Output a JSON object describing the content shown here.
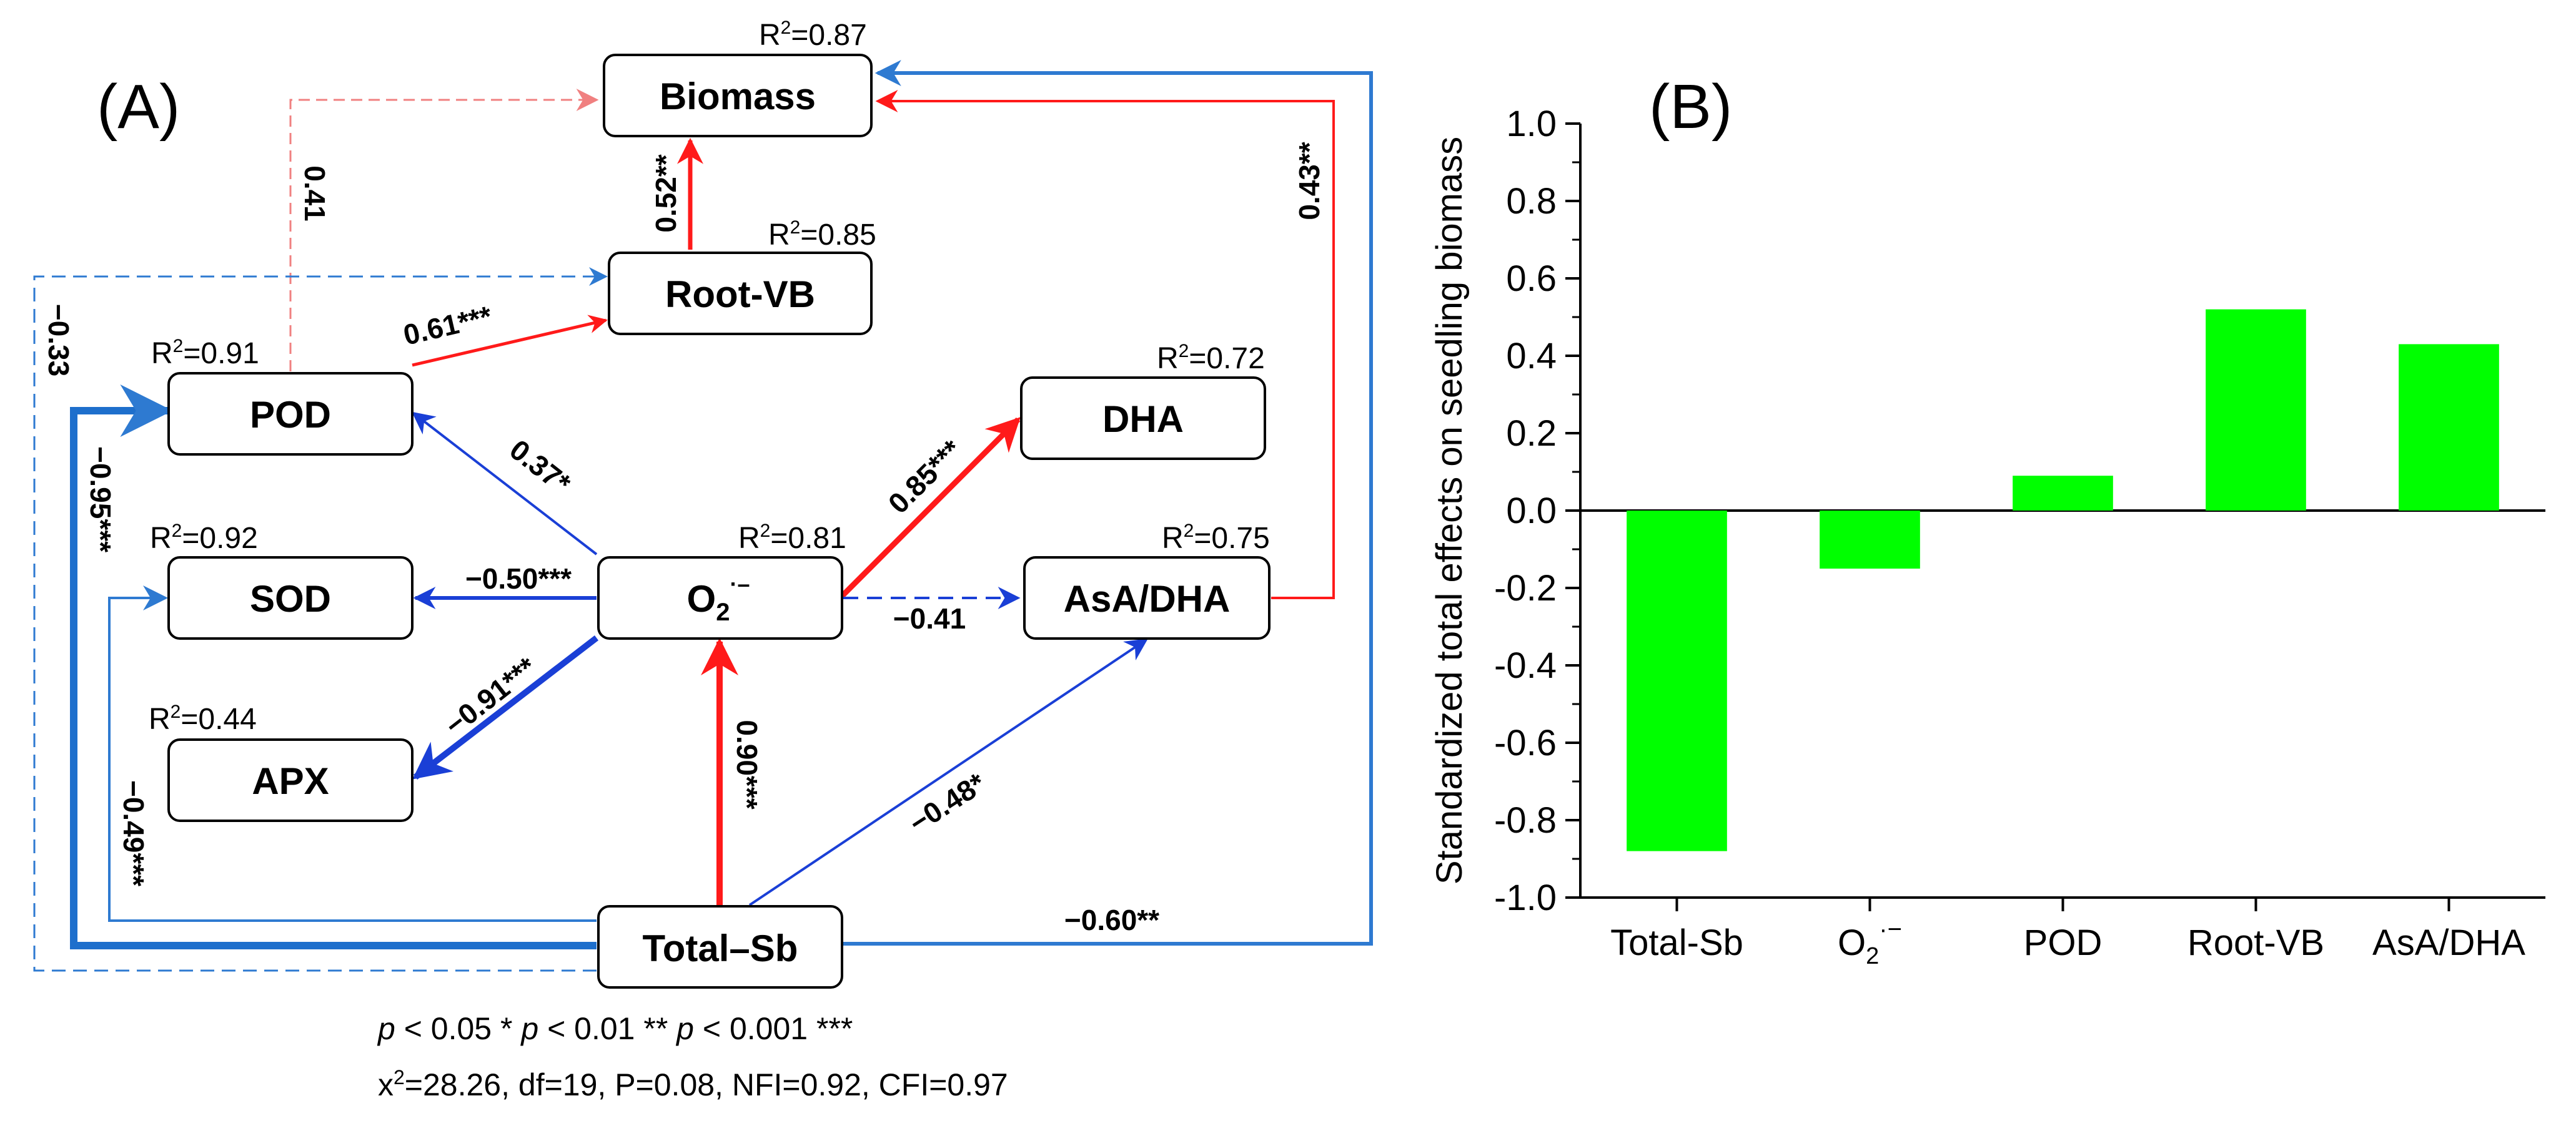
{
  "panel_a": {
    "label": "(A)",
    "nodes": {
      "biomass": "Biomass",
      "rootvb": "Root-VB",
      "pod": "POD",
      "sod": "SOD",
      "apx": "APX",
      "o2": "O",
      "o2_sub": "2",
      "o2_sup": "·–",
      "dha": "DHA",
      "asa": "AsA/DHA",
      "totalsb": "Total–Sb"
    },
    "r2": {
      "biomass": "0.87",
      "rootvb": "0.85",
      "pod": "0.91",
      "dha": "0.72",
      "o2": "0.81",
      "sod": "0.92",
      "asa": "0.75",
      "apx": "0.44"
    },
    "r2_prefix": "R",
    "r2_sup": "2",
    "r2_eq": "=",
    "coefficients": {
      "pod_biomass": "0.41",
      "rootvb_biomass": "0.52**",
      "asa_biomass": "0.43**",
      "totalsb_rootvb": "−0.33",
      "pod_rootvb": "0.61***",
      "totalsb_pod": "−0.95***",
      "o2_pod": "0.37*",
      "o2_dha": "0.85***",
      "o2_sod": "−0.50***",
      "o2_asa": "−0.41",
      "o2_apx": "−0.91***",
      "totalsb_o2": "0.90***",
      "totalsb_asa": "−0.48*",
      "totalsb_sod": "−0.49***",
      "totalsb_biomass": "−0.60**"
    },
    "significance_note": {
      "p": "p",
      "lt05": " < 0.05 * ",
      "lt01": " < 0.01 ** ",
      "lt001": " < 0.001 ***"
    },
    "fit": {
      "x": "x",
      "sup": "2",
      "rest": "=28.26, df=19, P=0.08, NFI=0.92, CFI=0.97"
    },
    "colors": {
      "positive": "#ff1a1a",
      "negative": "#1a3fd6",
      "light_negative": "#2e7ad1",
      "dashed_positive": "#f08080"
    }
  },
  "panel_b": {
    "label": "(B)",
    "chart_data": {
      "type": "bar",
      "categories": [
        "Total-Sb",
        "O2·−",
        "POD",
        "Root-VB",
        "AsA/DHA"
      ],
      "category_main": [
        "Total-Sb",
        "O",
        "POD",
        "Root-VB",
        "AsA/DHA"
      ],
      "category_sub": [
        "",
        "2",
        "",
        "",
        ""
      ],
      "category_sup": [
        "",
        "·−",
        "",
        "",
        ""
      ],
      "values": [
        -0.88,
        -0.15,
        0.09,
        0.52,
        0.43
      ],
      "ylabel": "Standardized total effects on seedling biomass",
      "ylim": [
        -1.0,
        1.0
      ],
      "yticks": [
        "1.0",
        "0.8",
        "0.6",
        "0.4",
        "0.2",
        "0.0",
        "-0.2",
        "-0.4",
        "-0.6",
        "-0.8",
        "-1.0"
      ],
      "bar_color": "#00ff00"
    }
  }
}
